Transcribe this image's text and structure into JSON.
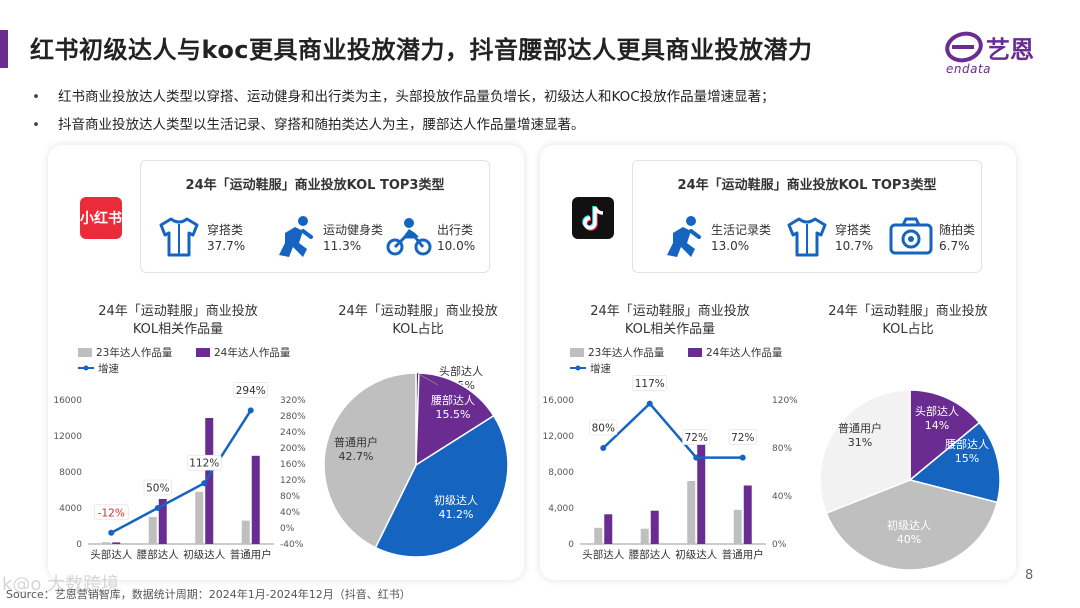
{
  "header": {
    "title": "红书初级达人与koc更具商业投放潜力，抖音腰部达人更具商业投放潜力",
    "logo_cn": "艺恩",
    "logo_en": "endata"
  },
  "bullets": [
    "红书商业投放达人类型以穿搭、运动健身和出行类为主，头部投放作品量负增长，初级达人和KOC投放作品量增速显著；",
    "抖音商业投放达人类型以生活记录、穿搭和随拍类达人为主，腰部达人作品量增速显著。"
  ],
  "left_panel": {
    "app_logo": "小红书",
    "top3": {
      "title": "24年「运动鞋服」商业投放KOL TOP3类型",
      "items": [
        {
          "label": "穿搭类",
          "value": "37.7%",
          "icon": "shirt-icon"
        },
        {
          "label": "运动健身类",
          "value": "11.3%",
          "icon": "runner-icon"
        },
        {
          "label": "出行类",
          "value": "10.0%",
          "icon": "motorcycle-icon"
        }
      ]
    },
    "bar_title_1": "24年「运动鞋服」商业投放",
    "bar_title_2": "KOL相关作品量",
    "pie_title_1": "24年「运动鞋服」商业投放",
    "pie_title_2": "KOL占比"
  },
  "right_panel": {
    "top3": {
      "title": "24年「运动鞋服」商业投放KOL TOP3类型",
      "items": [
        {
          "label": "生活记录类",
          "value": "13.0%",
          "icon": "runner-icon"
        },
        {
          "label": "穿搭类",
          "value": "10.7%",
          "icon": "shirt-icon"
        },
        {
          "label": "随拍类",
          "value": "6.7%",
          "icon": "camera-icon"
        }
      ]
    },
    "bar_title_1": "24年「运动鞋服」商业投放",
    "bar_title_2": "KOL相关作品量",
    "pie_title_1": "24年「运动鞋服」商业投放",
    "pie_title_2": "KOL占比"
  },
  "chart_data": [
    {
      "type": "bar",
      "categories": [
        "头部达人",
        "腰部达人",
        "初级达人",
        "普通用户"
      ],
      "series": [
        {
          "name": "23年达人作品量",
          "values": [
            200,
            3000,
            5800,
            2600
          ],
          "color": "#bfbfbf"
        },
        {
          "name": "24年达人作品量",
          "values": [
            180,
            5000,
            14000,
            9800
          ],
          "color": "#6a2c91"
        }
      ],
      "line": {
        "name": "增速",
        "values": [
          -12,
          50,
          112,
          294
        ],
        "labels": [
          "-12%",
          "50%",
          "112%",
          "294%"
        ],
        "color": "#1565c0"
      },
      "ylim": [
        0,
        16000
      ],
      "yticks": [
        0,
        4000,
        8000,
        12000,
        16000
      ],
      "yticks_labels": [
        "0",
        "4000",
        "8000",
        "12000",
        "16000"
      ],
      "y2lim": [
        -40,
        320
      ],
      "y2ticks": [
        -40,
        0,
        40,
        80,
        120,
        160,
        200,
        240,
        280,
        320
      ],
      "y2ticks_labels": [
        "-40%",
        "0%",
        "40%",
        "80%",
        "120%",
        "160%",
        "200%",
        "240%",
        "280%",
        "320%"
      ]
    },
    {
      "type": "pie",
      "labels": [
        "头部达人",
        "腰部达人",
        "初级达人",
        "普通用户"
      ],
      "values": [
        0.5,
        15.5,
        41.2,
        42.7
      ],
      "value_labels": [
        "0.5%",
        "15.5%",
        "41.2%",
        "42.7%"
      ],
      "colors": [
        "#4b1f6f",
        "#6a2c91",
        "#1565c0",
        "#bfbfbf"
      ]
    },
    {
      "type": "bar",
      "categories": [
        "头部达人",
        "腰部达人",
        "初级达人",
        "普通用户"
      ],
      "series": [
        {
          "name": "23年达人作品量",
          "values": [
            1800,
            1700,
            7000,
            3800
          ],
          "color": "#bfbfbf"
        },
        {
          "name": "24年达人作品量",
          "values": [
            3300,
            3700,
            12000,
            6500
          ],
          "color": "#6a2c91"
        }
      ],
      "line": {
        "name": "增速",
        "values": [
          80,
          117,
          72,
          72
        ],
        "labels": [
          "80%",
          "117%",
          "72%",
          "72%"
        ],
        "color": "#1565c0"
      },
      "ylim": [
        0,
        16000
      ],
      "yticks": [
        0,
        4000,
        8000,
        12000,
        16000
      ],
      "yticks_labels": [
        "0",
        "4,000",
        "8,000",
        "12,000",
        "16,000"
      ],
      "y2lim": [
        0,
        120
      ],
      "y2ticks": [
        0,
        40,
        80,
        120
      ],
      "y2ticks_labels": [
        "0%",
        "40%",
        "80%",
        "120%"
      ]
    },
    {
      "type": "pie",
      "labels": [
        "头部达人",
        "腰部达人",
        "初级达人",
        "普通用户"
      ],
      "values": [
        14,
        15,
        40,
        31
      ],
      "value_labels": [
        "14%",
        "15%",
        "40%",
        "31%"
      ],
      "colors": [
        "#6a2c91",
        "#1565c0",
        "#bfbfbf",
        "#f2f2f2"
      ]
    }
  ],
  "footer": {
    "source": "Source：艺恩营销智库，数据统计周期：2024年1月-2024年12月（抖音、红书）",
    "page": "8",
    "watermark": "k@o 大数跨境"
  }
}
